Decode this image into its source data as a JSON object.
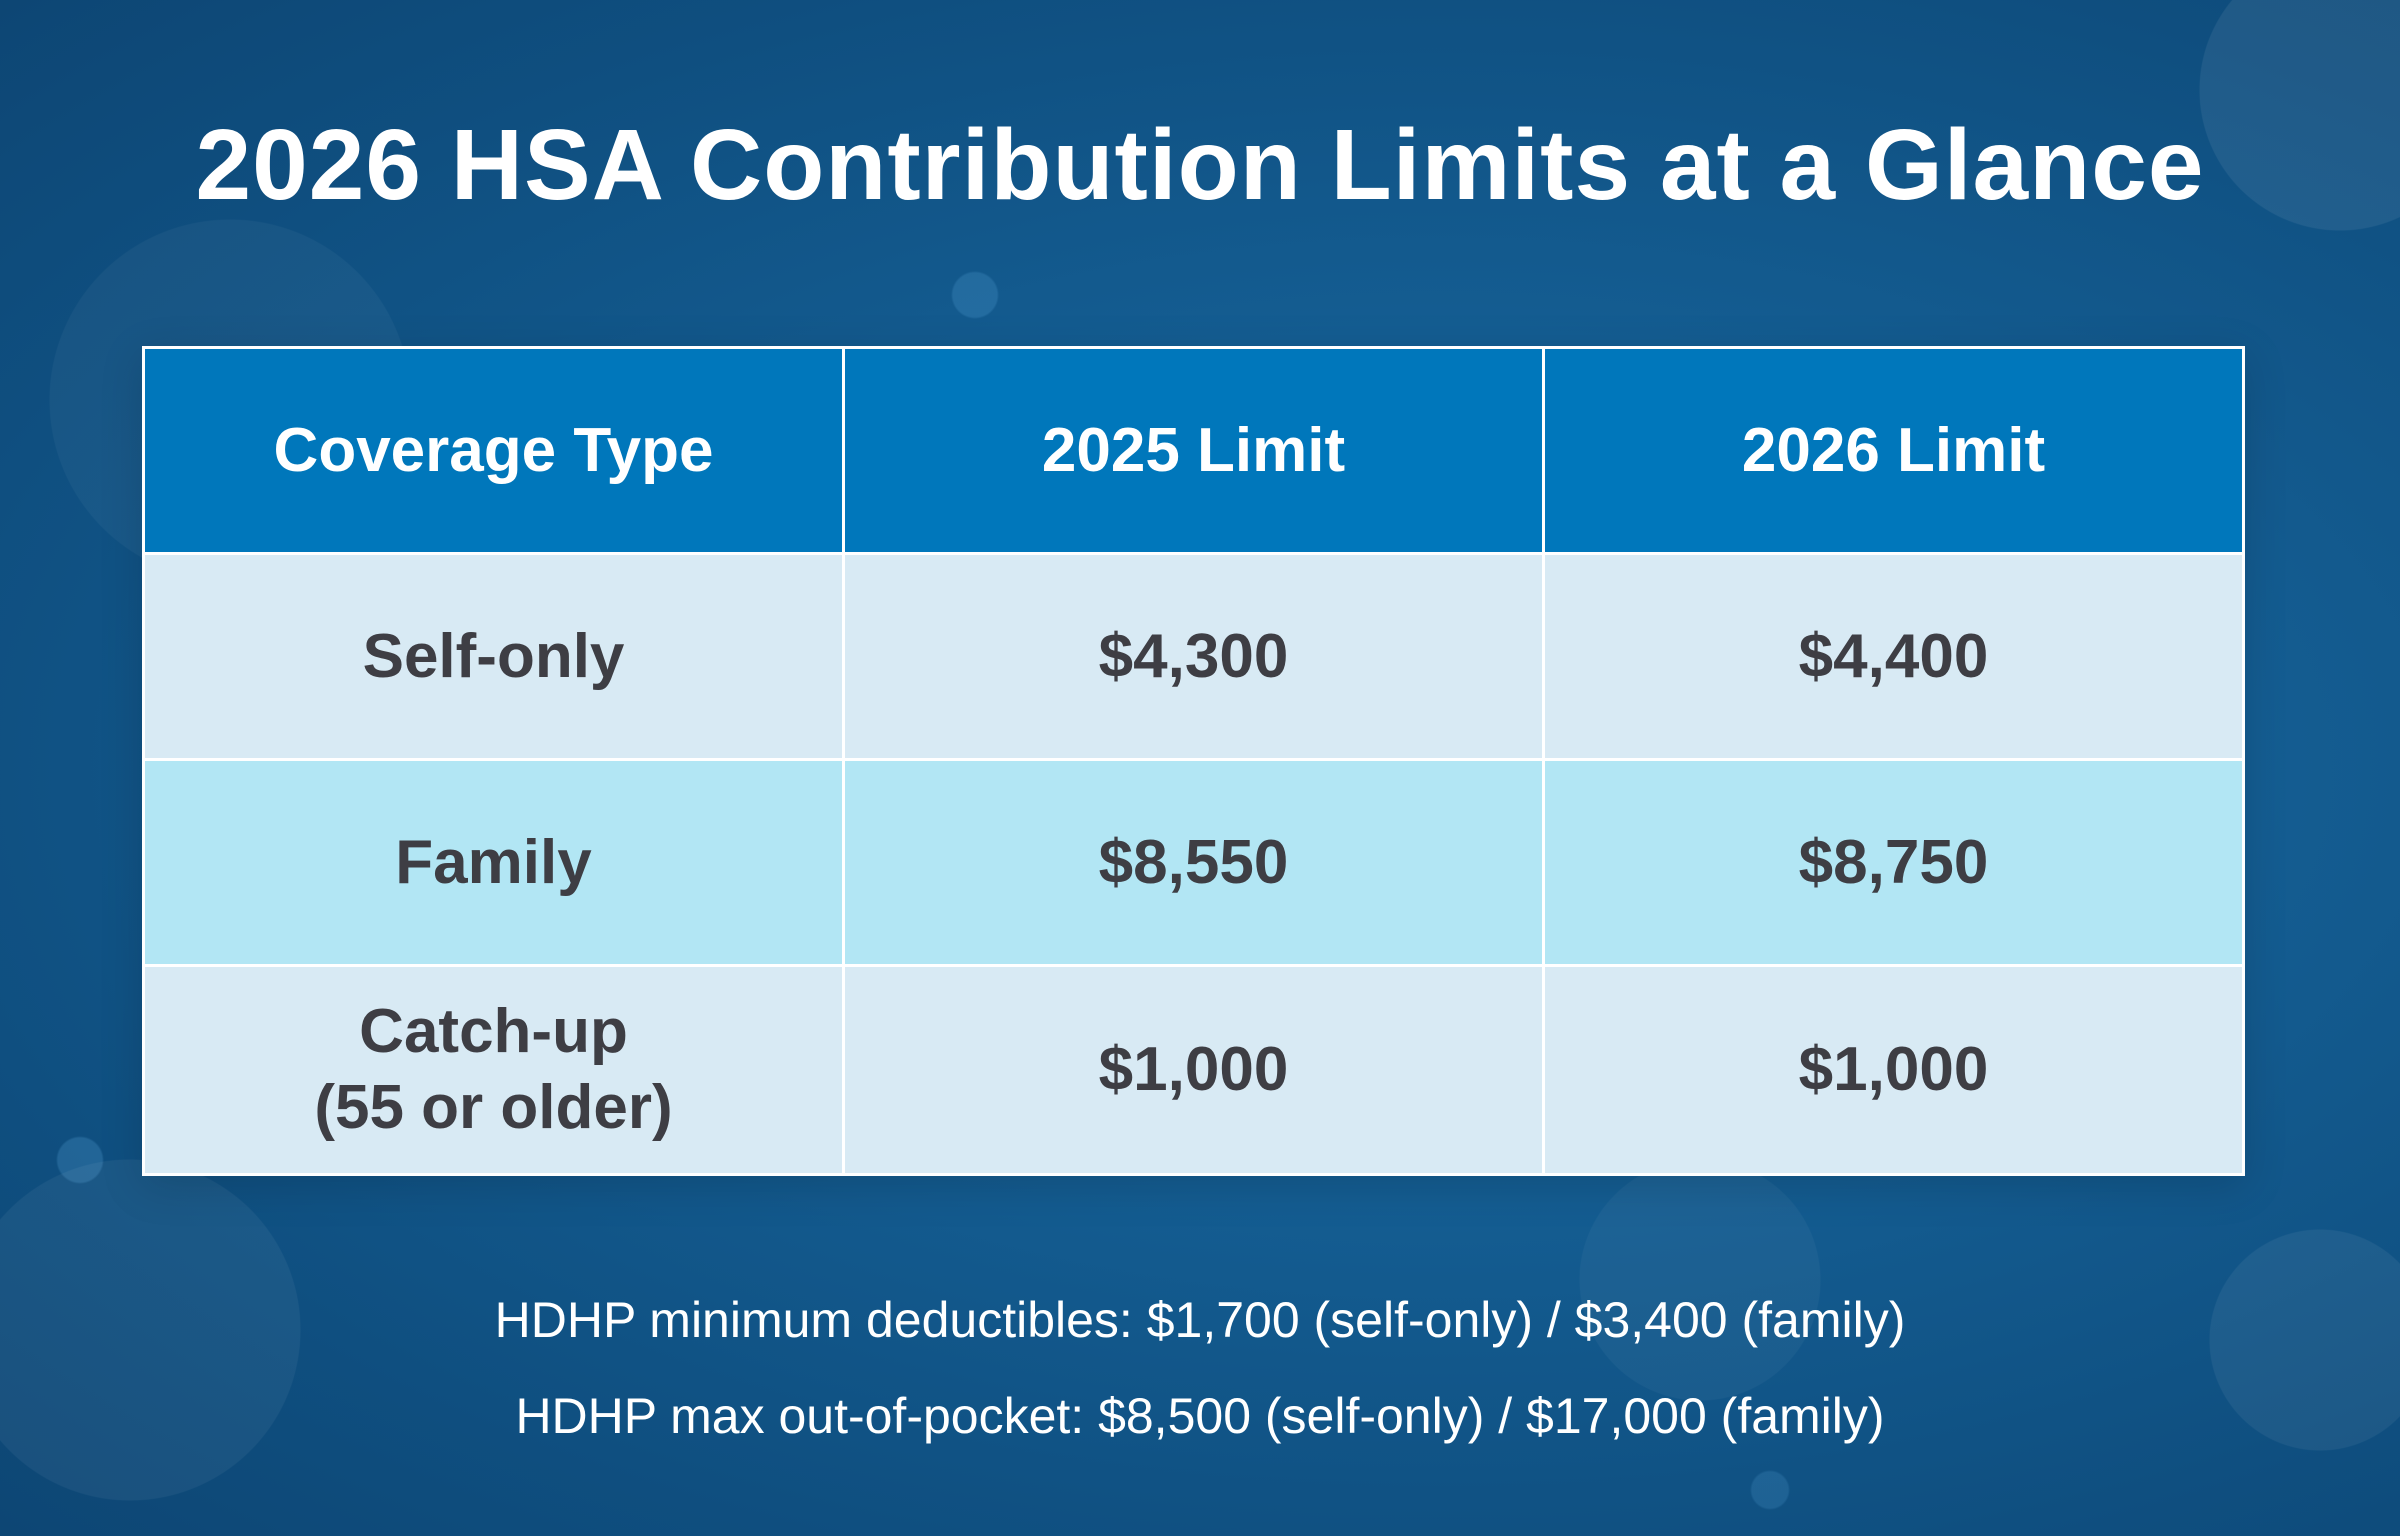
{
  "title": "2026 HSA Contribution Limits at a Glance",
  "table": {
    "headers": [
      "Coverage Type",
      "2025 Limit",
      "2026 Limit"
    ],
    "rows": [
      {
        "coverage": "Self-only",
        "limit_2025": "$4,300",
        "limit_2026": "$4,400"
      },
      {
        "coverage": "Family",
        "limit_2025": "$8,550",
        "limit_2026": "$8,750"
      },
      {
        "coverage_line1": "Catch-up",
        "coverage_line2": "(55 or older)",
        "limit_2025": "$1,000",
        "limit_2026": "$1,000"
      }
    ]
  },
  "footnotes": [
    "HDHP minimum deductibles: $1,700 (self-only) / $3,400 (family)",
    "HDHP max out-of-pocket: $8,500 (self-only) / $17,000 (family)"
  ],
  "colors": {
    "background": "#145d92",
    "header_fill": "#0077bb",
    "row_light": "#d8eaf4",
    "row_aqua": "#b2e6f4",
    "cell_text": "#3e3e44"
  }
}
